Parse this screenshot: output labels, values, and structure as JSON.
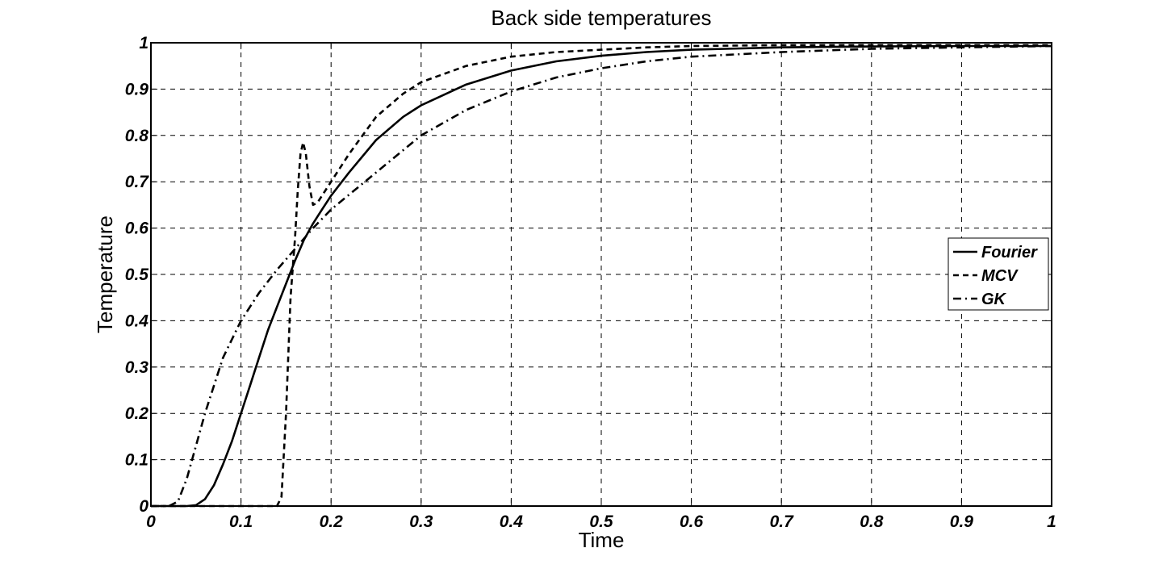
{
  "chart_data": {
    "type": "line",
    "title": "Back side temperatures",
    "xlabel": "Time",
    "ylabel": "Temperature",
    "xlim": [
      0,
      1
    ],
    "ylim": [
      0,
      1
    ],
    "xticks": [
      "0",
      "0.1",
      "0.2",
      "0.3",
      "0.4",
      "0.5",
      "0.6",
      "0.7",
      "0.8",
      "0.9",
      "1"
    ],
    "yticks": [
      "0",
      "0.1",
      "0.2",
      "0.3",
      "0.4",
      "0.5",
      "0.6",
      "0.7",
      "0.8",
      "0.9",
      "1"
    ],
    "grid": true,
    "legend_position": "right",
    "series": [
      {
        "name": "Fourier",
        "style": "solid",
        "color": "#000000",
        "x": [
          0,
          0.04,
          0.05,
          0.06,
          0.07,
          0.08,
          0.09,
          0.1,
          0.11,
          0.12,
          0.13,
          0.14,
          0.15,
          0.16,
          0.17,
          0.18,
          0.19,
          0.2,
          0.22,
          0.25,
          0.28,
          0.3,
          0.35,
          0.4,
          0.45,
          0.5,
          0.55,
          0.6,
          0.7,
          0.8,
          0.9,
          1.0
        ],
        "y": [
          0,
          0,
          0.002,
          0.015,
          0.045,
          0.09,
          0.14,
          0.2,
          0.26,
          0.32,
          0.38,
          0.43,
          0.48,
          0.53,
          0.575,
          0.61,
          0.64,
          0.67,
          0.72,
          0.79,
          0.84,
          0.865,
          0.91,
          0.94,
          0.96,
          0.972,
          0.98,
          0.985,
          0.99,
          0.992,
          0.993,
          0.993
        ]
      },
      {
        "name": "MCV",
        "style": "dashed",
        "color": "#000000",
        "x": [
          0,
          0.14,
          0.145,
          0.15,
          0.155,
          0.16,
          0.163,
          0.166,
          0.169,
          0.172,
          0.176,
          0.18,
          0.185,
          0.19,
          0.2,
          0.22,
          0.25,
          0.28,
          0.3,
          0.35,
          0.4,
          0.45,
          0.5,
          0.55,
          0.6,
          0.7,
          0.8,
          0.9,
          1.0
        ],
        "y": [
          0,
          0,
          0.02,
          0.2,
          0.45,
          0.58,
          0.68,
          0.76,
          0.785,
          0.76,
          0.69,
          0.65,
          0.655,
          0.67,
          0.7,
          0.76,
          0.84,
          0.89,
          0.915,
          0.95,
          0.97,
          0.98,
          0.985,
          0.99,
          0.993,
          0.995,
          0.995,
          0.995,
          0.995
        ]
      },
      {
        "name": "GK",
        "style": "dashdot",
        "color": "#000000",
        "x": [
          0,
          0.02,
          0.03,
          0.04,
          0.05,
          0.06,
          0.07,
          0.08,
          0.09,
          0.1,
          0.12,
          0.14,
          0.16,
          0.18,
          0.2,
          0.25,
          0.3,
          0.35,
          0.4,
          0.45,
          0.5,
          0.55,
          0.6,
          0.7,
          0.8,
          0.9,
          1.0
        ],
        "y": [
          0,
          0,
          0.01,
          0.06,
          0.13,
          0.2,
          0.26,
          0.32,
          0.36,
          0.4,
          0.46,
          0.51,
          0.555,
          0.6,
          0.64,
          0.72,
          0.8,
          0.855,
          0.895,
          0.925,
          0.945,
          0.96,
          0.97,
          0.98,
          0.987,
          0.99,
          0.993
        ]
      }
    ]
  }
}
